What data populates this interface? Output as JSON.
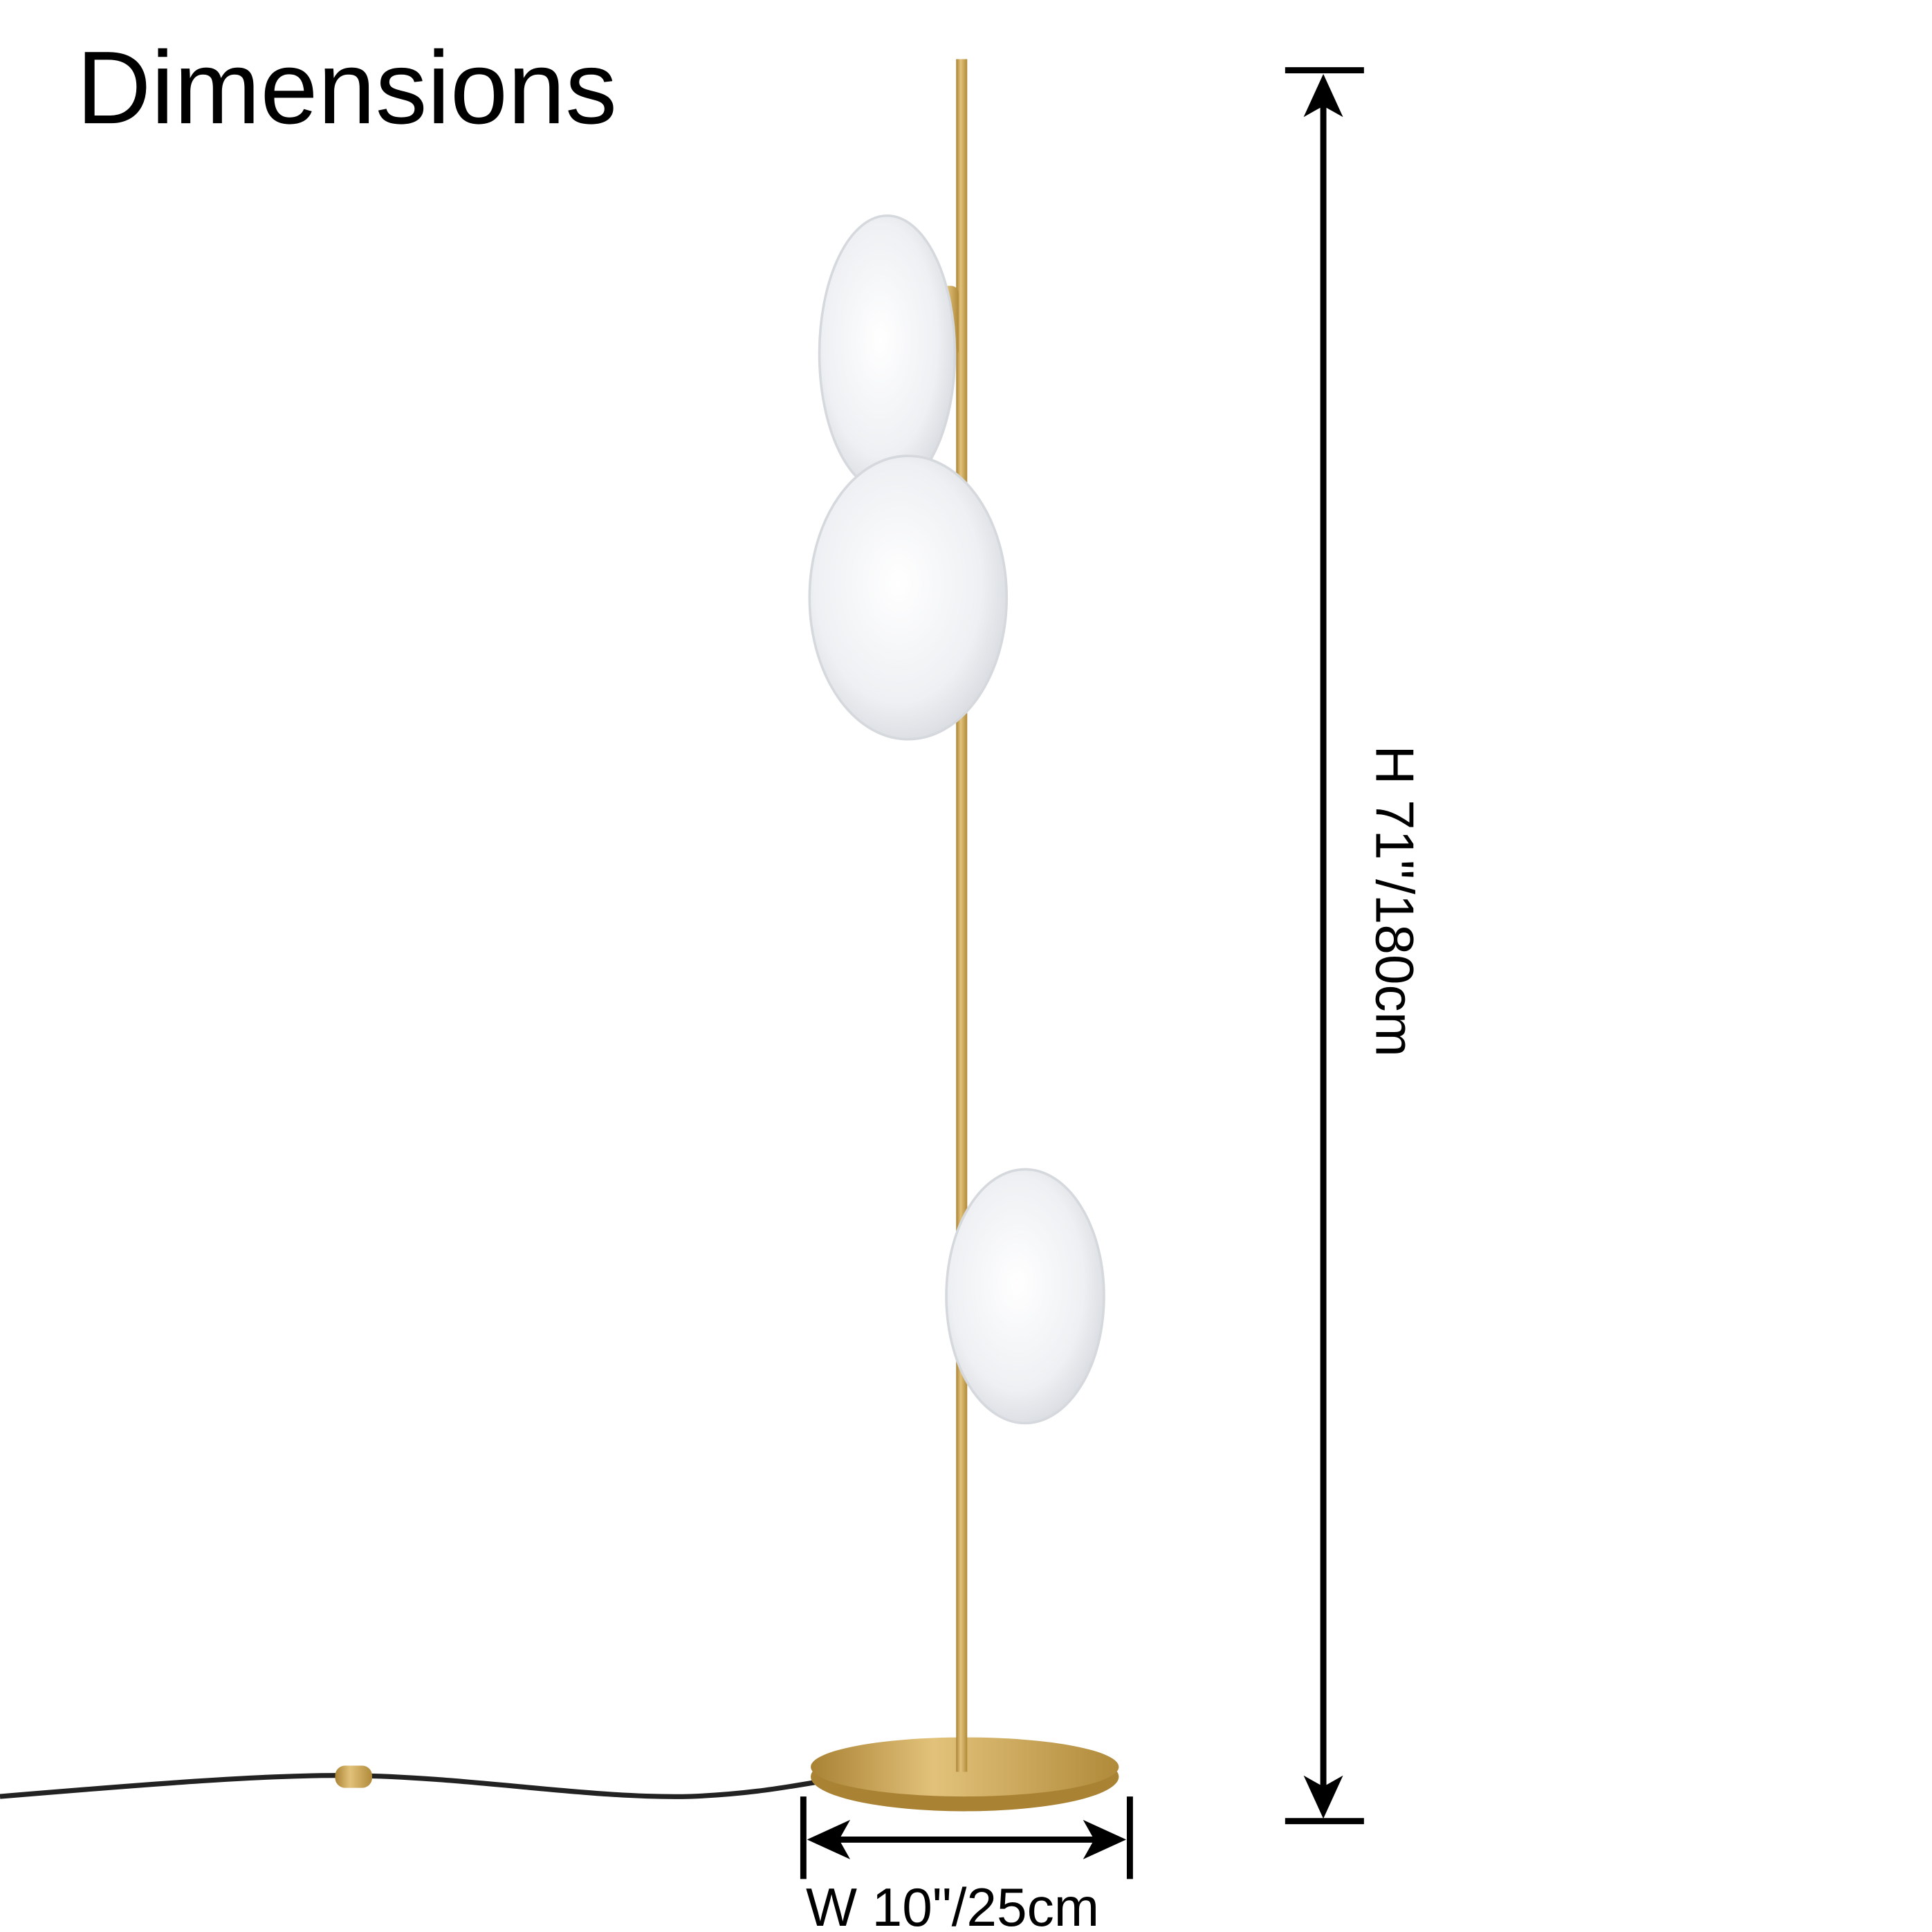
{
  "title": "Dimensions",
  "dimensions": {
    "height_label": "H 71\"/180cm",
    "width_label": "W 10\"/25cm"
  },
  "colors": {
    "brass": "#c9a24e",
    "brass_dark": "#a98234",
    "glass": "#f2f3f5",
    "cord": "#222222",
    "arrow": "#000000"
  }
}
